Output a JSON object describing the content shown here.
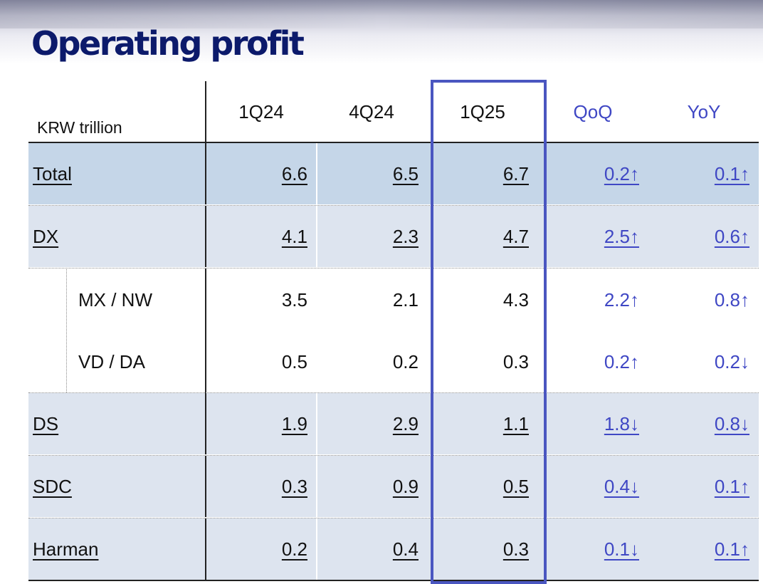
{
  "title": "Operating profit",
  "unit": "KRW trillion",
  "columns": [
    "1Q24",
    "4Q24",
    "1Q25",
    "QoQ",
    "YoY"
  ],
  "rows": [
    {
      "label": "Total",
      "q1_24": "6.6",
      "q4_24": "6.5",
      "q1_25": "6.7",
      "qoq": "0.2↑",
      "yoy": "0.1↑"
    },
    {
      "label": "DX",
      "q1_24": "4.1",
      "q4_24": "2.3",
      "q1_25": "4.7",
      "qoq": "2.5↑",
      "yoy": "0.6↑"
    },
    {
      "label": "MX / NW",
      "q1_24": "3.5",
      "q4_24": "2.1",
      "q1_25": "4.3",
      "qoq": "2.2↑",
      "yoy": "0.8↑"
    },
    {
      "label": "VD / DA",
      "q1_24": "0.5",
      "q4_24": "0.2",
      "q1_25": "0.3",
      "qoq": "0.2↑",
      "yoy": "0.2↓"
    },
    {
      "label": "DS",
      "q1_24": "1.9",
      "q4_24": "2.9",
      "q1_25": "1.1",
      "qoq": "1.8↓",
      "yoy": "0.8↓"
    },
    {
      "label": "SDC",
      "q1_24": "0.3",
      "q4_24": "0.9",
      "q1_25": "0.5",
      "qoq": "0.4↓",
      "yoy": "0.1↑"
    },
    {
      "label": "Harman",
      "q1_24": "0.2",
      "q4_24": "0.4",
      "q1_25": "0.3",
      "qoq": "0.1↓",
      "yoy": "0.1↑"
    }
  ],
  "colors": {
    "title": "#0c1a6b",
    "accent": "#3f47c4",
    "total_row": "#c5d6e8",
    "shaded_row": "#dde4ef",
    "highlight_border": "#4a56c0"
  }
}
